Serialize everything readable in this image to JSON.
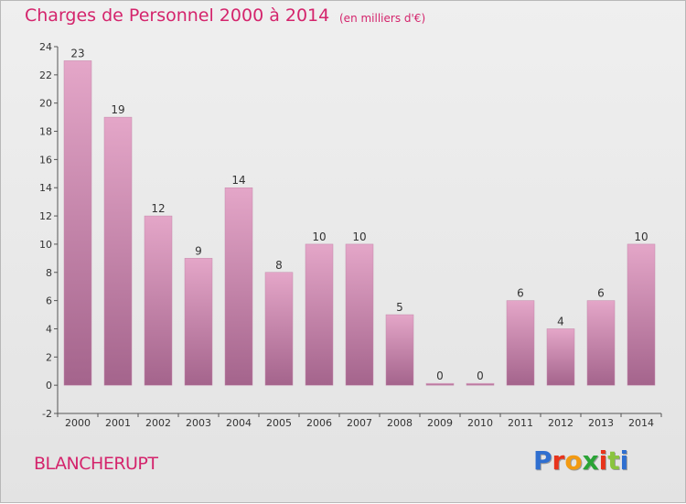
{
  "title": "Charges de Personnel 2000 à 2014",
  "subtitle": "(en milliers d'€)",
  "commune": "BLANCHERUPT",
  "logo": {
    "letters": [
      "P",
      "r",
      "o",
      "x",
      "i",
      "t",
      "i"
    ],
    "colors": [
      "#2f6fd0",
      "#e8341c",
      "#f29a12",
      "#2aa436",
      "#e8341c",
      "#8ac43f",
      "#2f6fd0"
    ]
  },
  "colors": {
    "bar_top": "#e4a6c8",
    "bar_bottom": "#a4648c",
    "accent": "#d4246c"
  },
  "chart_data": {
    "type": "bar",
    "title": "Charges de Personnel 2000 à 2014",
    "subtitle": "(en milliers d'€)",
    "categories": [
      "2000",
      "2001",
      "2002",
      "2003",
      "2004",
      "2005",
      "2006",
      "2007",
      "2008",
      "2009",
      "2010",
      "2011",
      "2012",
      "2013",
      "2014"
    ],
    "values": [
      23,
      19,
      12,
      9,
      14,
      8,
      10,
      10,
      5,
      0,
      0,
      6,
      4,
      6,
      10
    ],
    "ylim": [
      -2,
      24
    ],
    "yticks": [
      -2,
      0,
      2,
      4,
      6,
      8,
      10,
      12,
      14,
      16,
      18,
      20,
      22,
      24
    ],
    "grid": false,
    "legend": "none"
  }
}
